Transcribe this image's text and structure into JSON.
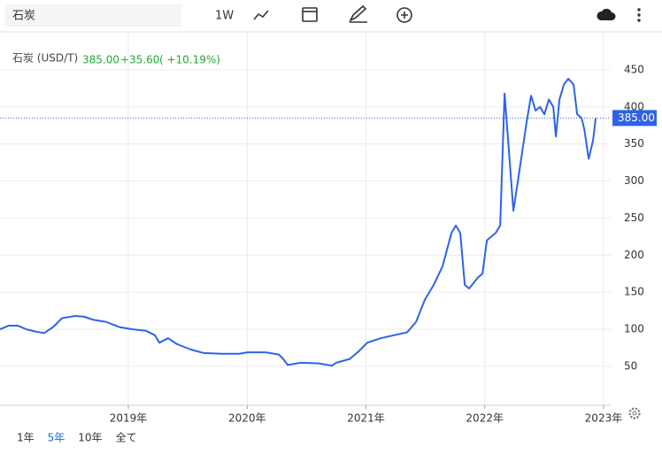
{
  "toolbar": {
    "search": "石炭",
    "interval": "1W"
  },
  "range_buttons": [
    "1年",
    "5年",
    "10年",
    "全て"
  ],
  "active_range": 1,
  "chart_data": {
    "type": "line",
    "title": "石炭 (USD/T)",
    "quote": {
      "price": "385.00",
      "change": "+35.60",
      "percent": "( +10.19%)"
    },
    "x": [
      2017.92,
      2017.994,
      2018.069,
      2018.143,
      2018.218,
      2018.292,
      2018.367,
      2018.441,
      2018.553,
      2018.627,
      2018.702,
      2018.814,
      2018.925,
      2019.037,
      2019.149,
      2019.224,
      2019.261,
      2019.335,
      2019.41,
      2019.522,
      2019.633,
      2019.782,
      2019.931,
      2020.006,
      2020.155,
      2020.267,
      2020.304,
      2020.341,
      2020.453,
      2020.602,
      2020.714,
      2020.751,
      2020.863,
      2020.937,
      2021.012,
      2021.124,
      2021.235,
      2021.347,
      2021.422,
      2021.496,
      2021.571,
      2021.645,
      2021.72,
      2021.757,
      2021.794,
      2021.832,
      2021.869,
      2021.943,
      2021.981,
      2022.018,
      2022.092,
      2022.13,
      2022.167,
      2022.204,
      2022.241,
      2022.279,
      2022.353,
      2022.39,
      2022.428,
      2022.465,
      2022.502,
      2022.54,
      2022.577,
      2022.599,
      2022.629,
      2022.666,
      2022.703,
      2022.748,
      2022.778,
      2022.815,
      2022.838,
      2022.875,
      2022.912,
      2022.934
    ],
    "series": [
      {
        "name": "石炭",
        "color": "#2f63e6",
        "values": [
          100,
          105,
          105,
          100,
          97,
          95,
          103,
          115,
          118,
          117,
          113,
          110,
          103,
          100,
          98,
          92,
          82,
          88,
          80,
          73,
          68,
          67,
          67,
          69,
          69,
          66,
          60,
          52,
          55,
          54,
          51,
          55,
          60,
          70,
          82,
          88,
          92,
          96,
          110,
          140,
          160,
          185,
          230,
          240,
          230,
          160,
          155,
          170,
          175,
          220,
          230,
          240,
          418,
          340,
          260,
          300,
          380,
          415,
          395,
          400,
          390,
          410,
          400,
          360,
          410,
          430,
          438,
          430,
          390,
          385,
          370,
          330,
          355,
          385
        ]
      }
    ],
    "current_value": 385,
    "current_label": "385.00",
    "xlim": [
      2017.92,
      2023.06
    ],
    "xticks": [
      {
        "value": 2019,
        "label": "2019年"
      },
      {
        "value": 2020,
        "label": "2020年"
      },
      {
        "value": 2021,
        "label": "2021年"
      },
      {
        "value": 2022,
        "label": "2022年"
      },
      {
        "value": 2023,
        "label": "2023年"
      }
    ],
    "ylim": [
      -2.5,
      500
    ],
    "yticks": [
      50,
      100,
      150,
      200,
      250,
      300,
      350,
      400,
      450
    ],
    "grid": true
  }
}
